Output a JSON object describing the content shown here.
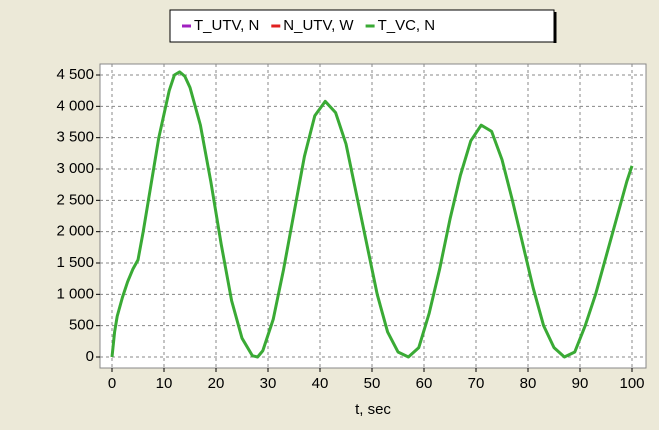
{
  "chart_data": {
    "type": "line",
    "x_label": "t, sec",
    "x": [
      0,
      0.5,
      1,
      2,
      3,
      4,
      5,
      6,
      7,
      9,
      11,
      12,
      13,
      14,
      15,
      17,
      19,
      21,
      23,
      25,
      27,
      28,
      29,
      31,
      33,
      35,
      37,
      39,
      41,
      43,
      45,
      47,
      49,
      51,
      53,
      55,
      57,
      59,
      61,
      63,
      65,
      67,
      69,
      71,
      73,
      75,
      77,
      79,
      81,
      83,
      85,
      87,
      89,
      91,
      93,
      95,
      97,
      99,
      100
    ],
    "series": [
      {
        "name": "T_UTV, N",
        "color": "#a020c0",
        "values": [
          null,
          null,
          null,
          null,
          null,
          null,
          null,
          null,
          null,
          null,
          null,
          null,
          null,
          null,
          null,
          null,
          null,
          null,
          null,
          null,
          null,
          null,
          null,
          null,
          null,
          null,
          null,
          null,
          null,
          null,
          null,
          null,
          null,
          null,
          null,
          null,
          null,
          null,
          null,
          null,
          null,
          null,
          null,
          null,
          null,
          null,
          null,
          null,
          null,
          null,
          null,
          null,
          null,
          null,
          null,
          null,
          null,
          null,
          null
        ]
      },
      {
        "name": "N_UTV, W",
        "color": "#e02020",
        "values": [
          null,
          null,
          null,
          null,
          null,
          null,
          null,
          null,
          null,
          null,
          null,
          null,
          null,
          null,
          null,
          null,
          null,
          null,
          null,
          null,
          null,
          null,
          null,
          null,
          null,
          null,
          null,
          null,
          null,
          null,
          null,
          null,
          null,
          null,
          null,
          null,
          null,
          null,
          null,
          null,
          null,
          null,
          null,
          null,
          null,
          null,
          null,
          null,
          null,
          null,
          null,
          null,
          null,
          null,
          null,
          null,
          null,
          null,
          null
        ]
      },
      {
        "name": "T_VC, N",
        "color": "#3aaa35",
        "values": [
          0,
          400,
          650,
          950,
          1200,
          1400,
          1550,
          2000,
          2500,
          3500,
          4250,
          4500,
          4550,
          4480,
          4300,
          3700,
          2800,
          1800,
          900,
          300,
          20,
          0,
          100,
          600,
          1400,
          2300,
          3200,
          3850,
          4080,
          3900,
          3400,
          2600,
          1800,
          1000,
          400,
          80,
          0,
          150,
          700,
          1400,
          2200,
          2900,
          3450,
          3700,
          3600,
          3150,
          2500,
          1800,
          1100,
          500,
          150,
          0,
          80,
          500,
          1000,
          1600,
          2200,
          2800,
          3050
        ]
      }
    ],
    "xlim": [
      0,
      100
    ],
    "xticks": [
      0,
      10,
      20,
      30,
      40,
      50,
      60,
      70,
      80,
      90,
      100
    ],
    "ylim": [
      0,
      4500
    ],
    "yticks": [
      0,
      500,
      {
        "value": 1000,
        "label": "1 000"
      },
      {
        "value": 1500,
        "label": "1 500"
      },
      {
        "value": 2000,
        "label": "2 000"
      },
      {
        "value": 2500,
        "label": "2 500"
      },
      {
        "value": 3000,
        "label": "3 000"
      },
      {
        "value": 3500,
        "label": "3 500"
      },
      {
        "value": 4000,
        "label": "4 000"
      },
      {
        "value": 4500,
        "label": "4 500"
      }
    ],
    "grid": true,
    "legend": "top"
  }
}
